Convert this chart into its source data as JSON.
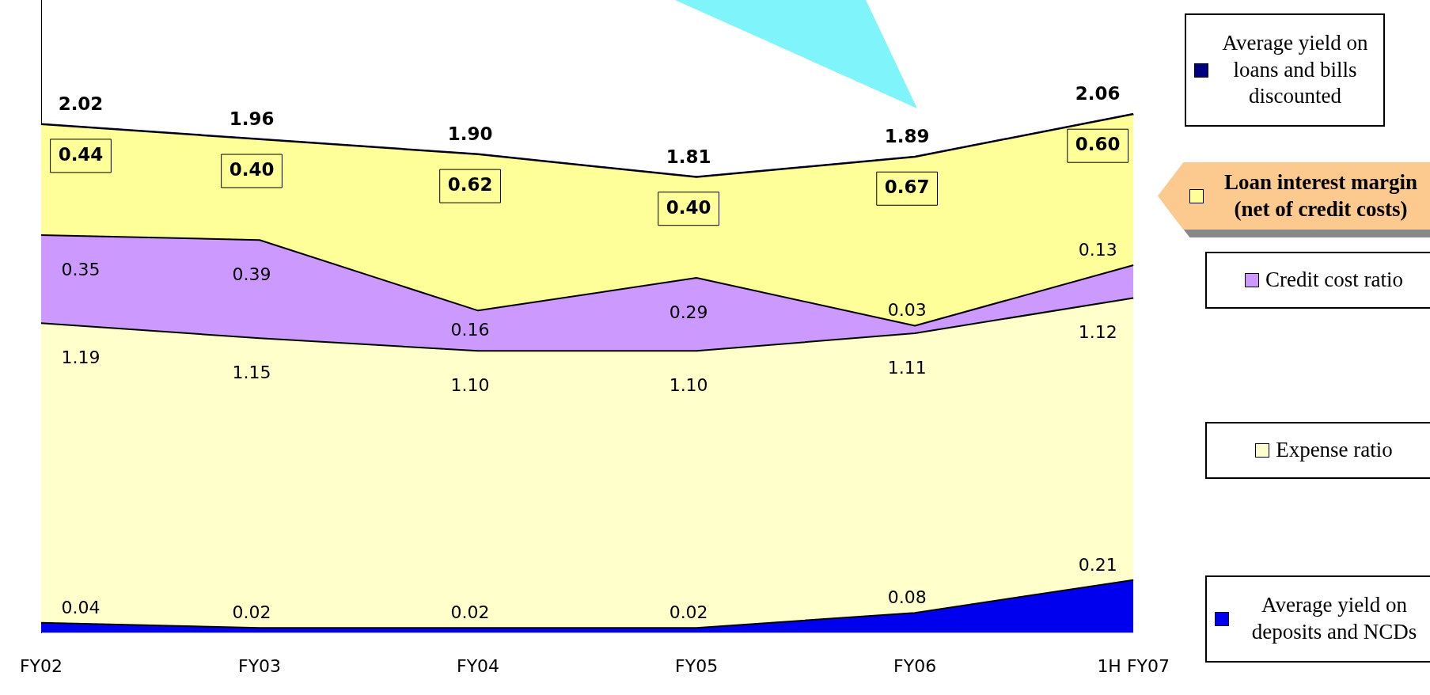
{
  "chart_data": {
    "type": "area",
    "stacked": true,
    "legend": "right",
    "tick_labels": "x",
    "categories": [
      "FY02",
      "FY03",
      "FY04",
      "FY05",
      "FY06",
      "1H FY07"
    ],
    "series": [
      {
        "name": "Average yield on deposits and NCDs",
        "color": "#0000ee",
        "values": [
          0.04,
          0.02,
          0.02,
          0.02,
          0.08,
          0.21
        ],
        "value_labels": [
          "0.04",
          "0.02",
          "0.02",
          "0.02",
          "0.08",
          "0.21"
        ]
      },
      {
        "name": "Expense ratio",
        "color": "#ffffcc",
        "values": [
          1.19,
          1.15,
          1.1,
          1.1,
          1.11,
          1.12
        ],
        "value_labels": [
          "1.19",
          "1.15",
          "1.10",
          "1.10",
          "1.11",
          "1.12"
        ]
      },
      {
        "name": "Credit cost ratio",
        "color": "#cc99ff",
        "values": [
          0.35,
          0.39,
          0.16,
          0.29,
          0.03,
          0.13
        ],
        "value_labels": [
          "0.35",
          "0.39",
          "0.16",
          "0.29",
          "0.03",
          "0.13"
        ]
      },
      {
        "name": "Loan interest margin (net of credit costs)",
        "color": "#ffff99",
        "values": [
          0.44,
          0.4,
          0.62,
          0.4,
          0.67,
          0.6
        ],
        "value_labels": [
          "0.44",
          "0.40",
          "0.62",
          "0.40",
          "0.67",
          "0.60"
        ]
      },
      {
        "name": "Average yield on loans and bills discounted",
        "type": "line",
        "color": "#000080",
        "values": [
          2.02,
          1.96,
          1.9,
          1.81,
          1.89,
          2.06
        ],
        "value_labels": [
          "2.02",
          "1.96",
          "1.90",
          "1.81",
          "1.89",
          "2.06"
        ]
      }
    ]
  }
}
